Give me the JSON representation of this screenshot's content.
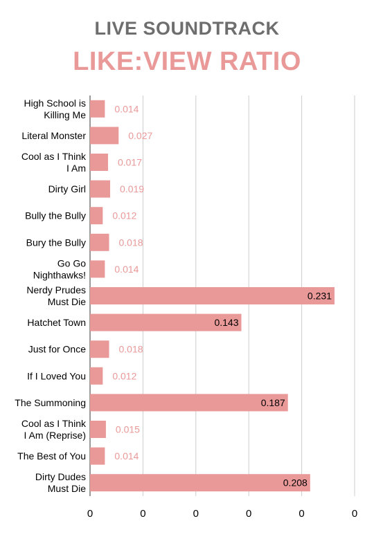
{
  "chart_data": {
    "type": "bar",
    "orientation": "horizontal",
    "title": "LIVE SOUNDTRACK",
    "subtitle": "LIKE:VIEW RATIO",
    "categories": [
      "High School is Killing Me",
      "Literal Monster",
      "Cool as I Think I Am",
      "Dirty Girl",
      "Bully the Bully",
      "Bury the Bully",
      "Go Go Nighthawks!",
      "Nerdy Prudes Must Die",
      "Hatchet Town",
      "Just for Once",
      "If I Loved You",
      "The Summoning",
      "Cool as I Think I Am (Reprise)",
      "The Best of You",
      "Dirty Dudes Must Die"
    ],
    "values": [
      0.014,
      0.027,
      0.017,
      0.019,
      0.012,
      0.018,
      0.014,
      0.231,
      0.143,
      0.018,
      0.012,
      0.187,
      0.015,
      0.014,
      0.208
    ],
    "value_labels": [
      "0.014",
      "0.027",
      "0.017",
      "0.019",
      "0.012",
      "0.018",
      "0.014",
      "0.231",
      "0.143",
      "0.018",
      "0.012",
      "0.187",
      "0.015",
      "0.014",
      "0.208"
    ],
    "x_tick_labels": [
      "0",
      "0",
      "0",
      "0",
      "0",
      "0"
    ],
    "xlim": [
      0,
      0.25
    ],
    "grid": true,
    "bar_color": "#ea9999",
    "label_inside_color": "#000000",
    "label_outside_color": "#ea9999"
  }
}
